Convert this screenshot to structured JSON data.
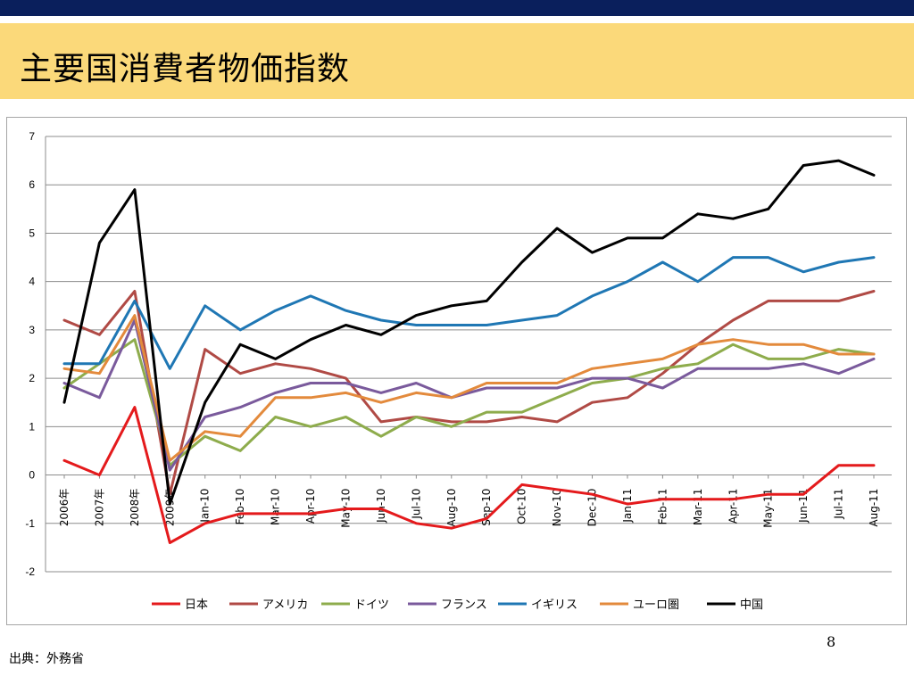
{
  "slide": {
    "title": "主要国消費者物価指数",
    "page_number": "8",
    "source": "出典：外務省"
  },
  "chart_data": {
    "type": "line",
    "title": "",
    "xlabel": "",
    "ylabel": "",
    "ylim": [
      -2,
      7
    ],
    "yticks": [
      "7",
      "6",
      "5",
      "4",
      "3",
      "2",
      "1",
      "0",
      "-1",
      "-2"
    ],
    "grid": true,
    "legend_position": "bottom",
    "categories": [
      "2006年",
      "2007年",
      "2008年",
      "2009年",
      "Jan-10",
      "Feb-10",
      "Mar-10",
      "Apr-10",
      "May-10",
      "Jun-10",
      "Jul-10",
      "Aug-10",
      "Sep-10",
      "Oct-10",
      "Nov-10",
      "Dec-10",
      "Jan-11",
      "Feb-11",
      "Mar-11",
      "Apr-11",
      "May-11",
      "Jun-11",
      "Jul-11",
      "Aug-11"
    ],
    "series": [
      {
        "name": "日本",
        "color": "#e41a1c",
        "values": [
          0.3,
          0.0,
          1.4,
          -1.4,
          -1.0,
          -0.8,
          -0.8,
          -0.8,
          -0.7,
          -0.7,
          -1.0,
          -1.1,
          -0.9,
          -0.2,
          -0.3,
          -0.4,
          -0.6,
          -0.5,
          -0.5,
          -0.5,
          -0.4,
          -0.4,
          0.2,
          0.2
        ]
      },
      {
        "name": "アメリカ",
        "color": "#b04a45",
        "values": [
          3.2,
          2.9,
          3.8,
          -0.4,
          2.6,
          2.1,
          2.3,
          2.2,
          2.0,
          1.1,
          1.2,
          1.1,
          1.1,
          1.2,
          1.1,
          1.5,
          1.6,
          2.1,
          2.7,
          3.2,
          3.6,
          3.6,
          3.6,
          3.8
        ]
      },
      {
        "name": "ドイツ",
        "color": "#8eac4c",
        "values": [
          1.8,
          2.3,
          2.8,
          0.2,
          0.8,
          0.5,
          1.2,
          1.0,
          1.2,
          0.8,
          1.2,
          1.0,
          1.3,
          1.3,
          1.6,
          1.9,
          2.0,
          2.2,
          2.3,
          2.7,
          2.4,
          2.4,
          2.6,
          2.5
        ]
      },
      {
        "name": "フランス",
        "color": "#7a5a9c",
        "values": [
          1.9,
          1.6,
          3.2,
          0.1,
          1.2,
          1.4,
          1.7,
          1.9,
          1.9,
          1.7,
          1.9,
          1.6,
          1.8,
          1.8,
          1.8,
          2.0,
          2.0,
          1.8,
          2.2,
          2.2,
          2.2,
          2.3,
          2.1,
          2.4
        ]
      },
      {
        "name": "イギリス",
        "color": "#1f77b4",
        "values": [
          2.3,
          2.3,
          3.6,
          2.2,
          3.5,
          3.0,
          3.4,
          3.7,
          3.4,
          3.2,
          3.1,
          3.1,
          3.1,
          3.2,
          3.3,
          3.7,
          4.0,
          4.4,
          4.0,
          4.5,
          4.5,
          4.2,
          4.4,
          4.5
        ]
      },
      {
        "name": "ユーロ圏",
        "color": "#e38a3c",
        "values": [
          2.2,
          2.1,
          3.3,
          0.3,
          0.9,
          0.8,
          1.6,
          1.6,
          1.7,
          1.5,
          1.7,
          1.6,
          1.9,
          1.9,
          1.9,
          2.2,
          2.3,
          2.4,
          2.7,
          2.8,
          2.7,
          2.7,
          2.5,
          2.5
        ]
      },
      {
        "name": "中国",
        "color": "#000000",
        "values": [
          1.5,
          4.8,
          5.9,
          -0.6,
          1.5,
          2.7,
          2.4,
          2.8,
          3.1,
          2.9,
          3.3,
          3.5,
          3.6,
          4.4,
          5.1,
          4.6,
          4.9,
          4.9,
          5.4,
          5.3,
          5.5,
          6.4,
          6.5,
          6.2
        ]
      }
    ]
  }
}
